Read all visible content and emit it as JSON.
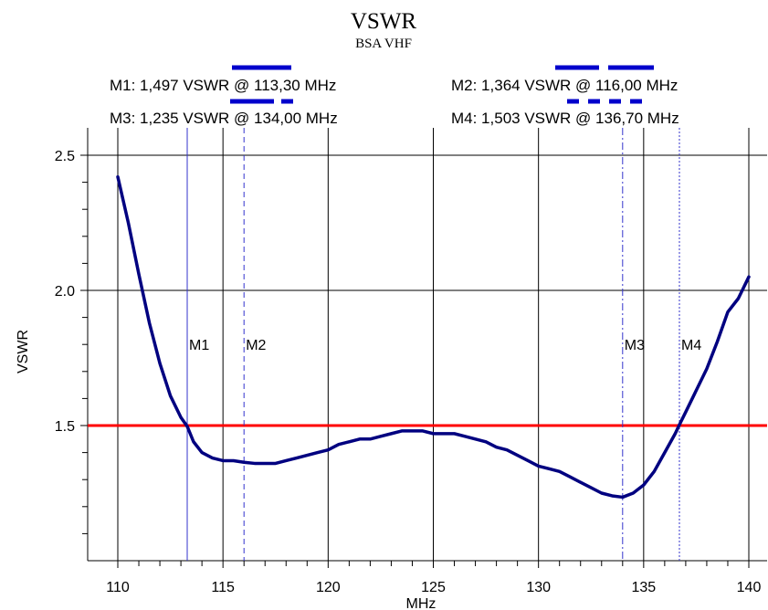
{
  "chart_data": {
    "type": "line",
    "title": "VSWR",
    "subtitle": "BSA VHF",
    "xlabel": "MHz",
    "ylabel": "VSWR",
    "xlim": [
      110,
      140
    ],
    "ylim": [
      1.0,
      2.5
    ],
    "x_ticks": [
      "110",
      "115",
      "120",
      "125",
      "130",
      "135",
      "140"
    ],
    "y_ticks": [
      "1.5",
      "2.0",
      "2.5"
    ],
    "grid": true,
    "series": [
      {
        "color": "#000080",
        "x": [
          110,
          110.5,
          111,
          111.5,
          112,
          112.5,
          113,
          113.3,
          113.6,
          114,
          114.5,
          115,
          115.5,
          116,
          116.5,
          117,
          117.5,
          118,
          118.5,
          119,
          119.5,
          120,
          120.5,
          121,
          121.5,
          122,
          122.5,
          123,
          123.5,
          124,
          124.5,
          125,
          125.5,
          126,
          126.5,
          127,
          127.5,
          128,
          128.5,
          129,
          129.5,
          130,
          130.5,
          131,
          131.5,
          132,
          132.5,
          133,
          133.5,
          134,
          134.5,
          135,
          135.5,
          136,
          136.5,
          136.7,
          137,
          137.5,
          138,
          138.5,
          139,
          139.5,
          140
        ],
        "y": [
          2.42,
          2.25,
          2.06,
          1.88,
          1.73,
          1.61,
          1.53,
          1.497,
          1.44,
          1.4,
          1.38,
          1.37,
          1.37,
          1.364,
          1.36,
          1.36,
          1.36,
          1.37,
          1.38,
          1.39,
          1.4,
          1.41,
          1.43,
          1.44,
          1.45,
          1.45,
          1.46,
          1.47,
          1.48,
          1.48,
          1.48,
          1.47,
          1.47,
          1.47,
          1.46,
          1.45,
          1.44,
          1.42,
          1.41,
          1.39,
          1.37,
          1.35,
          1.34,
          1.33,
          1.31,
          1.29,
          1.27,
          1.25,
          1.24,
          1.235,
          1.25,
          1.28,
          1.33,
          1.4,
          1.47,
          1.503,
          1.55,
          1.63,
          1.71,
          1.81,
          1.92,
          1.97,
          2.05
        ]
      }
    ],
    "reference_lines": [
      {
        "y": 1.5,
        "color": "#ff0000"
      }
    ],
    "markers": [
      {
        "name": "M1",
        "x": 113.3,
        "vswr": 1.497,
        "style": "solid",
        "annotation": "M1: 1,497 VSWR @ 113,30 MHz"
      },
      {
        "name": "M2",
        "x": 116.0,
        "vswr": 1.364,
        "style": "dashed",
        "annotation": "M2: 1,364 VSWR @ 116,00 MHz"
      },
      {
        "name": "M3",
        "x": 134.0,
        "vswr": 1.235,
        "style": "dashdot",
        "annotation": "M3: 1,235 VSWR @ 134,00 MHz"
      },
      {
        "name": "M4",
        "x": 136.7,
        "vswr": 1.503,
        "style": "dotted",
        "annotation": "M4: 1,503 VSWR @ 136,70 MHz"
      }
    ],
    "colors": {
      "curve": "#000080",
      "reference": "#ff0000",
      "marker": "#3333cc",
      "legend": "#0000cc",
      "grid": "#000000"
    }
  }
}
